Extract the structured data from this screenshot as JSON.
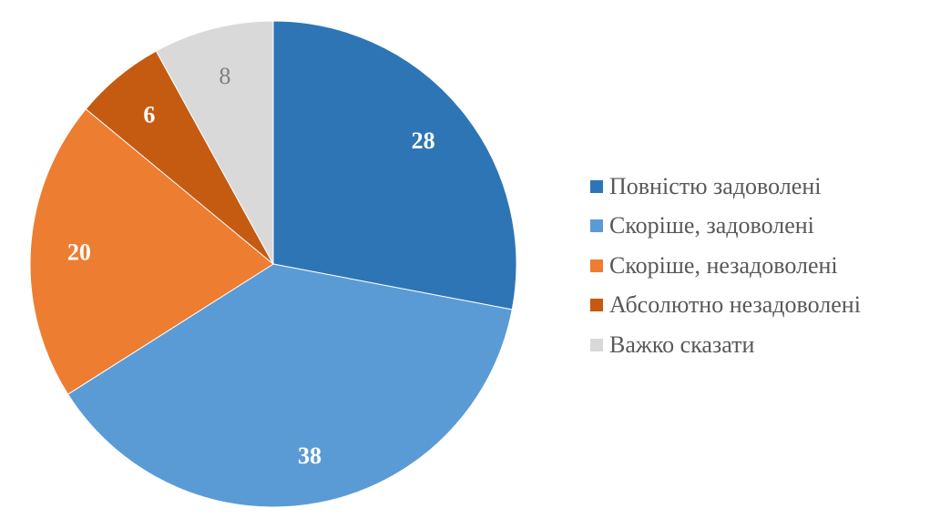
{
  "chart_data": {
    "type": "pie",
    "title": "",
    "categories": [
      "Повністю задоволені",
      "Скоріше, задоволені",
      "Скоріше, незадоволені",
      "Абсолютно незадоволені",
      "Важко сказати"
    ],
    "values": [
      28,
      38,
      20,
      6,
      8
    ],
    "colors": [
      "#2E75B6",
      "#5B9BD5",
      "#ED7D31",
      "#C55A11",
      "#D9D9D9"
    ],
    "label_colors": [
      "#FFFFFF",
      "#FFFFFF",
      "#FFFFFF",
      "#FFFFFF",
      "#7F7F7F"
    ],
    "start_angle_deg": 0,
    "direction": "clockwise",
    "legend_position": "right"
  },
  "legend": {
    "items": [
      {
        "label": "Повністю задоволені",
        "color": "#2E75B6"
      },
      {
        "label": "Скоріше, задоволені",
        "color": "#5B9BD5"
      },
      {
        "label": "Скоріше, незадоволені",
        "color": "#ED7D31"
      },
      {
        "label": "Абсолютно незадоволені",
        "color": "#C55A11"
      },
      {
        "label": "Важко сказати",
        "color": "#D9D9D9"
      }
    ]
  }
}
